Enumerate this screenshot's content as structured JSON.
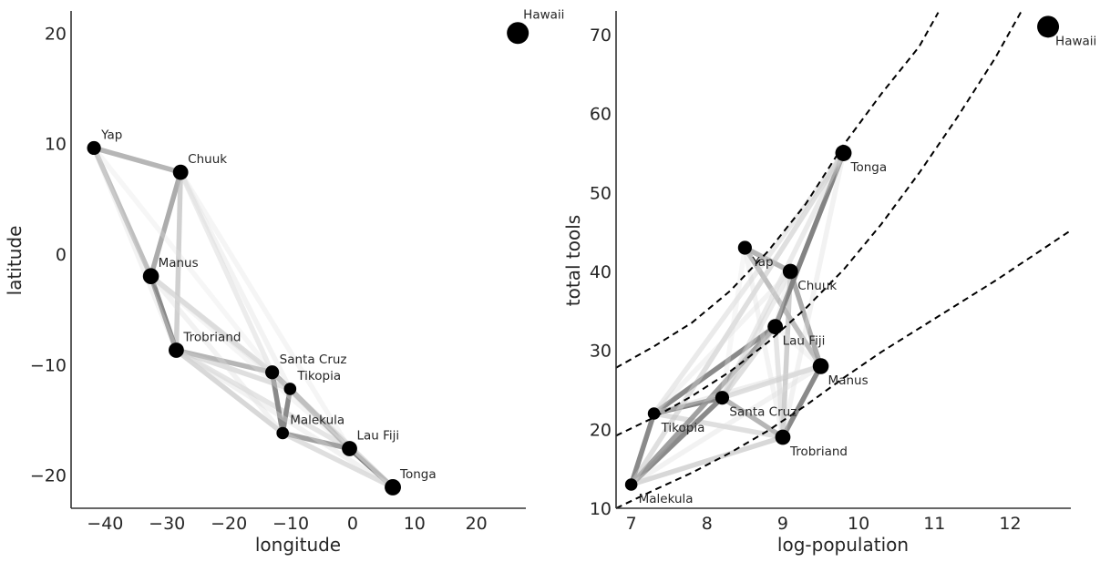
{
  "chart_data": [
    {
      "type": "scatter",
      "title": "",
      "xlabel": "longitude",
      "ylabel": "latitude",
      "xlim": [
        -45.5,
        28
      ],
      "ylim": [
        -23,
        22
      ],
      "xticks": [
        -40,
        -30,
        -20,
        -10,
        0,
        10,
        20
      ],
      "xtick_labels": [
        "−40",
        "−30",
        "−20",
        "−10",
        "0",
        "10",
        "20"
      ],
      "yticks": [
        -20,
        -10,
        0,
        10,
        20
      ],
      "ytick_labels": [
        "−20",
        "−10",
        "0",
        "10",
        "20"
      ],
      "grid": false,
      "points": [
        {
          "name": "Malekula",
          "x": -11.3,
          "y": -16.2,
          "size": 0.35
        },
        {
          "name": "Tikopia",
          "x": -10.1,
          "y": -12.2,
          "size": 0.35
        },
        {
          "name": "Santa Cruz",
          "x": -13.0,
          "y": -10.7,
          "size": 0.45
        },
        {
          "name": "Yap",
          "x": -41.8,
          "y": 9.6,
          "size": 0.45
        },
        {
          "name": "Lau Fiji",
          "x": -0.5,
          "y": -17.6,
          "size": 0.55
        },
        {
          "name": "Trobriand",
          "x": -28.5,
          "y": -8.7,
          "size": 0.55
        },
        {
          "name": "Chuuk",
          "x": -27.8,
          "y": 7.4,
          "size": 0.55
        },
        {
          "name": "Manus",
          "x": -32.6,
          "y": -2.0,
          "size": 0.6
        },
        {
          "name": "Tonga",
          "x": 6.5,
          "y": -21.1,
          "size": 0.62
        },
        {
          "name": "Hawaii",
          "x": 26.7,
          "y": 20.0,
          "size": 1.0
        }
      ]
    },
    {
      "type": "scatter",
      "title": "",
      "xlabel": "log-population",
      "ylabel": "total tools",
      "xlim": [
        6.8,
        12.8
      ],
      "ylim": [
        10,
        73
      ],
      "xticks": [
        7,
        8,
        9,
        10,
        11,
        12
      ],
      "xtick_labels": [
        "7",
        "8",
        "9",
        "10",
        "11",
        "12"
      ],
      "yticks": [
        10,
        20,
        30,
        40,
        50,
        60,
        70
      ],
      "ytick_labels": [
        "10",
        "20",
        "30",
        "40",
        "50",
        "60",
        "70"
      ],
      "grid": false,
      "points": [
        {
          "name": "Malekula",
          "x": 7.0,
          "y": 13,
          "size": 0.35
        },
        {
          "name": "Tikopia",
          "x": 7.3,
          "y": 22,
          "size": 0.35
        },
        {
          "name": "Santa Cruz",
          "x": 8.2,
          "y": 24,
          "size": 0.45
        },
        {
          "name": "Yap",
          "x": 8.5,
          "y": 43,
          "size": 0.45
        },
        {
          "name": "Lau Fiji",
          "x": 8.9,
          "y": 33,
          "size": 0.55
        },
        {
          "name": "Trobriand",
          "x": 9.0,
          "y": 19,
          "size": 0.55
        },
        {
          "name": "Chuuk",
          "x": 9.1,
          "y": 40,
          "size": 0.55
        },
        {
          "name": "Manus",
          "x": 9.5,
          "y": 28,
          "size": 0.6
        },
        {
          "name": "Tonga",
          "x": 9.8,
          "y": 55,
          "size": 0.62
        },
        {
          "name": "Hawaii",
          "x": 12.5,
          "y": 71,
          "size": 1.0
        }
      ],
      "curves": [
        {
          "name": "upper-interval",
          "style": "dashed",
          "x": [
            6.8,
            7.3,
            7.8,
            8.3,
            8.8,
            9.3,
            9.8,
            10.3,
            10.8,
            11.05
          ],
          "y": [
            27.8,
            30.5,
            33.5,
            37.5,
            42.5,
            48.5,
            56,
            62.5,
            68.5,
            72.8
          ]
        },
        {
          "name": "mean",
          "style": "dashed",
          "x": [
            6.8,
            7.3,
            7.8,
            8.3,
            8.8,
            9.3,
            9.8,
            10.3,
            10.8,
            11.3,
            11.8,
            12.15
          ],
          "y": [
            19.2,
            21.5,
            24.2,
            27.3,
            31,
            35.3,
            40.2,
            46,
            52.5,
            59.5,
            67,
            73
          ]
        },
        {
          "name": "lower-interval",
          "style": "dashed",
          "x": [
            6.8,
            7.3,
            7.8,
            8.3,
            8.8,
            9.3,
            9.8,
            10.3,
            10.8,
            11.3,
            11.8,
            12.3,
            12.8
          ],
          "y": [
            10,
            12.3,
            14.5,
            17,
            19.8,
            23,
            26.5,
            29.8,
            32.8,
            35.8,
            38.8,
            42,
            45.2
          ]
        }
      ]
    }
  ],
  "edges": [
    {
      "a": "Yap",
      "b": "Chuuk",
      "w": 0.55
    },
    {
      "a": "Yap",
      "b": "Manus",
      "w": 0.5
    },
    {
      "a": "Chuuk",
      "b": "Manus",
      "w": 0.6
    },
    {
      "a": "Chuuk",
      "b": "Trobriand",
      "w": 0.4
    },
    {
      "a": "Manus",
      "b": "Trobriand",
      "w": 0.75
    },
    {
      "a": "Manus",
      "b": "Santa Cruz",
      "w": 0.3
    },
    {
      "a": "Trobriand",
      "b": "Santa Cruz",
      "w": 0.55
    },
    {
      "a": "Trobriand",
      "b": "Tikopia",
      "w": 0.3
    },
    {
      "a": "Trobriand",
      "b": "Malekula",
      "w": 0.35
    },
    {
      "a": "Trobriand",
      "b": "Lau Fiji",
      "w": 0.25
    },
    {
      "a": "Santa Cruz",
      "b": "Tikopia",
      "w": 0.8
    },
    {
      "a": "Santa Cruz",
      "b": "Malekula",
      "w": 0.75
    },
    {
      "a": "Tikopia",
      "b": "Malekula",
      "w": 0.75
    },
    {
      "a": "Tikopia",
      "b": "Lau Fiji",
      "w": 0.75
    },
    {
      "a": "Malekula",
      "b": "Lau Fiji",
      "w": 0.65
    },
    {
      "a": "Lau Fiji",
      "b": "Tonga",
      "w": 0.8
    },
    {
      "a": "Malekula",
      "b": "Tonga",
      "w": 0.3
    },
    {
      "a": "Santa Cruz",
      "b": "Tonga",
      "w": 0.2
    },
    {
      "a": "Chuuk",
      "b": "Santa Cruz",
      "w": 0.18
    },
    {
      "a": "Chuuk",
      "b": "Tikopia",
      "w": 0.1
    },
    {
      "a": "Yap",
      "b": "Trobriand",
      "w": 0.1
    },
    {
      "a": "Manus",
      "b": "Tikopia",
      "w": 0.15
    },
    {
      "a": "Manus",
      "b": "Malekula",
      "w": 0.12
    },
    {
      "a": "Tikopia",
      "b": "Tonga",
      "w": 0.2
    },
    {
      "a": "Santa Cruz",
      "b": "Lau Fiji",
      "w": 0.3
    },
    {
      "a": "Trobriand",
      "b": "Tonga",
      "w": 0.12
    },
    {
      "a": "Chuuk",
      "b": "Lau Fiji",
      "w": 0.08
    },
    {
      "a": "Yap",
      "b": "Santa Cruz",
      "w": 0.06
    },
    {
      "a": "Manus",
      "b": "Lau Fiji",
      "w": 0.08
    }
  ]
}
